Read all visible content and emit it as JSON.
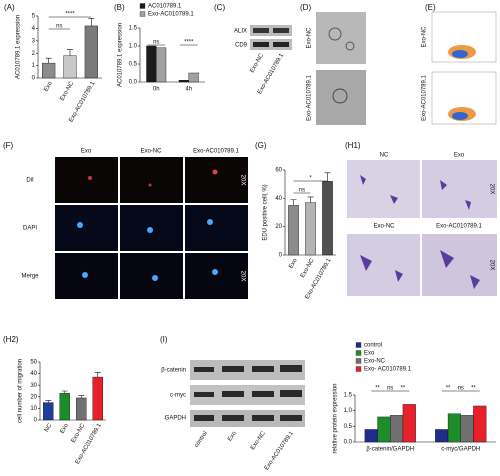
{
  "chart_data": [
    {
      "type": "bar",
      "panel": "(A)",
      "ylabel": "AC010789.1 expression",
      "categories": [
        "Exo",
        "Exo-NC",
        "Exo-AC010789.1"
      ],
      "values": [
        1.2,
        1.8,
        4.2
      ],
      "errors": [
        0.4,
        0.5,
        0.6
      ],
      "colors": [
        "#8c8c8c",
        "#c8c8c8",
        "#7a7a7a"
      ],
      "ylim": [
        0,
        5
      ],
      "yticks": [
        0,
        1,
        2,
        3,
        4,
        5
      ],
      "annotations": [
        "ns",
        "****"
      ]
    },
    {
      "type": "grouped_bar",
      "panel": "(B)",
      "ylabel": "AC010789.1 expression",
      "categories": [
        "0h",
        "4h"
      ],
      "series": [
        {
          "name": "AC010789.1",
          "color": "#1a1a1a",
          "values": [
            1.0,
            0.05
          ]
        },
        {
          "name": "Exo-AC010789.1",
          "color": "#a0a0a0",
          "values": [
            0.95,
            0.25
          ]
        }
      ],
      "ylim": [
        0,
        1.5
      ],
      "yticks": [
        {
          "value": 0,
          "label": "0.0"
        },
        0.5,
        {
          "value": 1,
          "label": "1.0"
        },
        1.5
      ],
      "annotations": [
        "ns",
        "****"
      ]
    },
    {
      "type": "bar",
      "panel": "(G)",
      "ylabel": "EDU positive cell( %)",
      "categories": [
        "Exo",
        "Exo-NC",
        "Exo-AC010789.1"
      ],
      "values": [
        35,
        37,
        52
      ],
      "errors": [
        4,
        4,
        6
      ],
      "colors": [
        "#8c8c8c",
        "#b4b4b4",
        "#505050"
      ],
      "ylim": [
        0,
        60
      ],
      "yticks": [
        0,
        20,
        40,
        60
      ],
      "annotations": [
        "ns",
        "*"
      ]
    },
    {
      "type": "bar",
      "panel": "(H2)",
      "ylabel": "cell number of migration",
      "categories": [
        "NC",
        "Exo",
        "Exo-NC",
        "Exo-AC010789.1"
      ],
      "values": [
        15,
        23,
        19,
        37
      ],
      "errors": [
        2,
        2,
        2,
        4
      ],
      "colors": [
        "#1f3c9c",
        "#1f8c2c",
        "#707070",
        "#e8202a"
      ],
      "ylim": [
        0,
        50
      ],
      "yticks": [
        0,
        10,
        20,
        30,
        40,
        50
      ]
    },
    {
      "type": "grouped_bar",
      "panel": "(I)",
      "ylabel": "relative protein expression",
      "categories": [
        "β-catenin/GAPDH",
        "c-myc/GAPDH"
      ],
      "series": [
        {
          "name": "control",
          "color": "#1f2c8c",
          "values": [
            0.4,
            0.4
          ]
        },
        {
          "name": "Exo",
          "color": "#1f8c2c",
          "values": [
            0.8,
            0.9
          ]
        },
        {
          "name": "Exo-NC",
          "color": "#707070",
          "values": [
            0.85,
            0.85
          ]
        },
        {
          "name": "Exo- AC010789.1",
          "color": "#e8202a",
          "values": [
            1.2,
            1.15
          ]
        }
      ],
      "ylim": [
        0,
        1.5
      ],
      "yticks": [
        {
          "value": 0,
          "label": "0.0"
        },
        0.5,
        {
          "value": 1,
          "label": "1.0"
        },
        1.5
      ],
      "annotations": [
        "**",
        "ns",
        "**",
        "**",
        "ns",
        "**"
      ]
    }
  ],
  "panel_labels": [
    "(C)",
    "(D)",
    "(E)",
    "(F)",
    "(H1)"
  ],
  "images": {
    "C": {
      "rows": [
        "ALIX",
        "CD9"
      ],
      "lanes": [
        "Exo-NC",
        "Exo-AC010789.1"
      ]
    },
    "D": {
      "rows": [
        "Exo-NC",
        "Exo-AC010789.1"
      ]
    },
    "E": {
      "rows": [
        "Exo-NC",
        "Exo-AC010789.1"
      ]
    },
    "F": {
      "columns": [
        "Exo",
        "Exo-NC",
        "Exo-AC010789.1"
      ],
      "rows": [
        "DiI",
        "DAPI",
        "Merge"
      ],
      "magnification": "20X"
    },
    "H1": {
      "groups": [
        "NC",
        "Exo",
        "Exo-NC",
        "Exo-AC010789.1"
      ],
      "magnification": "20X"
    },
    "I": {
      "rows": [
        "β-catenin",
        "c-myc",
        "GAPDH"
      ],
      "lanes": [
        "control",
        "Exo",
        "Exo-NC",
        "Exo-AC010789.1"
      ]
    }
  }
}
